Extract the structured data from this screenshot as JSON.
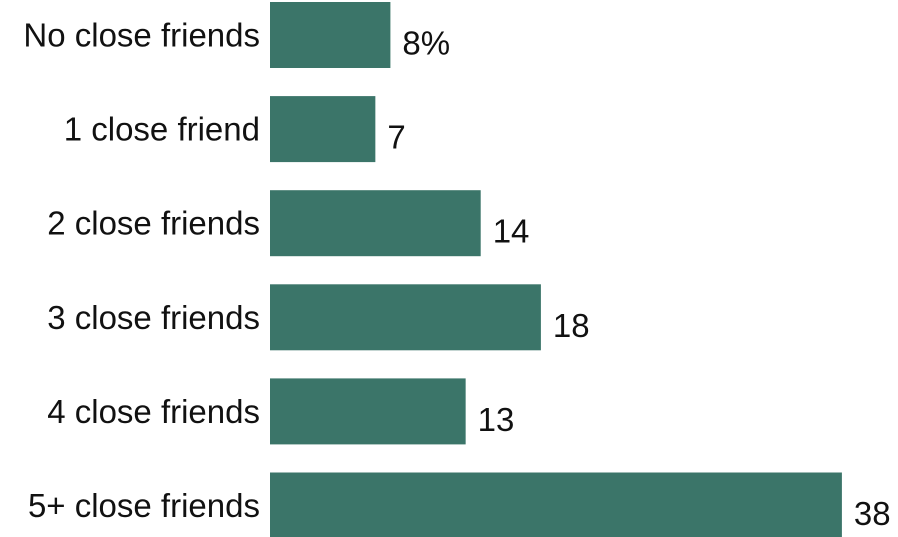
{
  "chart_data": {
    "type": "bar",
    "orientation": "horizontal",
    "categories": [
      "No close friends",
      "1 close friend",
      "2 close friends",
      "3 close friends",
      "4 close friends",
      "5+ close friends"
    ],
    "values": [
      8,
      7,
      14,
      18,
      13,
      38
    ],
    "value_labels": [
      "8%",
      "7",
      "14",
      "18",
      "13",
      "38"
    ],
    "unit": "%",
    "bar_color": "#3b7569",
    "title": "",
    "xlabel": "",
    "ylabel": "",
    "xlim": [
      0,
      38
    ],
    "grid": false,
    "legend": "none"
  }
}
